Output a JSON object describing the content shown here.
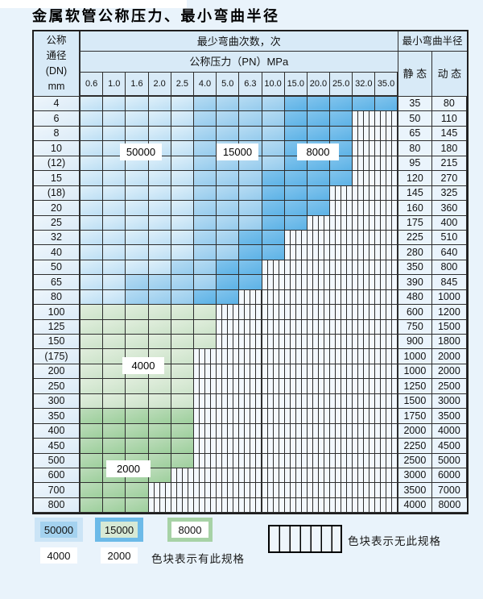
{
  "title": "金属软管公称压力、最小弯曲半径",
  "table": {
    "dn_header_lines": [
      "公称",
      "通径",
      "(DN)",
      "mm"
    ],
    "bend_cycles_header": "最少弯曲次数，次",
    "pressure_header": "公称压力（PN）MPa",
    "radius_header": "最小弯曲半径",
    "static_header": "静 态",
    "dynamic_header": "动 态",
    "pressure_columns": [
      "0.6",
      "1.0",
      "1.6",
      "2.0",
      "2.5",
      "4.0",
      "5.0",
      "6.3",
      "10.0",
      "15.0",
      "20.0",
      "25.0",
      "32.0",
      "35.0"
    ],
    "cell_legend": {
      "L": "50000",
      "M": "15000",
      "D": "8000",
      "g": "4000",
      "G": "2000",
      "x": "no-spec-hatched"
    },
    "rows": [
      {
        "dn": "4",
        "cells": "LLLLLMMMMDDDDD",
        "static": "35",
        "dynamic": "80"
      },
      {
        "dn": "6",
        "cells": "LLLLLMMMMDDDxx",
        "static": "50",
        "dynamic": "110"
      },
      {
        "dn": "8",
        "cells": "LLLLLMMMMDDDxx",
        "static": "65",
        "dynamic": "145"
      },
      {
        "dn": "10",
        "cells": "LLLLLMMMMDDDxx",
        "static": "80",
        "dynamic": "180"
      },
      {
        "dn": "(12)",
        "cells": "LLLLLMMMMDDDxx",
        "static": "95",
        "dynamic": "215"
      },
      {
        "dn": "15",
        "cells": "LLLLLMMMDDDDxx",
        "static": "120",
        "dynamic": "270"
      },
      {
        "dn": "(18)",
        "cells": "LLLLLMMMDDDxxx",
        "static": "145",
        "dynamic": "325"
      },
      {
        "dn": "20",
        "cells": "LLLLLMMMDDDxxx",
        "static": "160",
        "dynamic": "360"
      },
      {
        "dn": "25",
        "cells": "LLLLLMMMDDxxxx",
        "static": "175",
        "dynamic": "400"
      },
      {
        "dn": "32",
        "cells": "LLLLLMMDDxxxxx",
        "static": "225",
        "dynamic": "510"
      },
      {
        "dn": "40",
        "cells": "LLLLLMMDDxxxxx",
        "static": "280",
        "dynamic": "640"
      },
      {
        "dn": "50",
        "cells": "LLLLMMDDxxxxxx",
        "static": "350",
        "dynamic": "800"
      },
      {
        "dn": "65",
        "cells": "LLMMMMDDxxxxxx",
        "static": "390",
        "dynamic": "845"
      },
      {
        "dn": "80",
        "cells": "LLMMMDDxxxxxxx",
        "static": "480",
        "dynamic": "1000"
      },
      {
        "dn": "100",
        "cells": "ggggggxxxxxxxx",
        "static": "600",
        "dynamic": "1200"
      },
      {
        "dn": "125",
        "cells": "ggggggxxxxxxxx",
        "static": "750",
        "dynamic": "1500"
      },
      {
        "dn": "150",
        "cells": "ggggggxxxxxxxx",
        "static": "900",
        "dynamic": "1800"
      },
      {
        "dn": "(175)",
        "cells": "gggggxxxxxxxxx",
        "static": "1000",
        "dynamic": "2000"
      },
      {
        "dn": "200",
        "cells": "gggggxxxxxxxxx",
        "static": "1000",
        "dynamic": "2000"
      },
      {
        "dn": "250",
        "cells": "gggggxxxxxxxxx",
        "static": "1250",
        "dynamic": "2500"
      },
      {
        "dn": "300",
        "cells": "gggggxxxxxxxxx",
        "static": "1500",
        "dynamic": "3000"
      },
      {
        "dn": "350",
        "cells": "GGGGGxxxxxxxxx",
        "static": "1750",
        "dynamic": "3500"
      },
      {
        "dn": "400",
        "cells": "GGGGGxxxxxxxxx",
        "static": "2000",
        "dynamic": "4000"
      },
      {
        "dn": "450",
        "cells": "GGGGGxxxxxxxxx",
        "static": "2250",
        "dynamic": "4500"
      },
      {
        "dn": "500",
        "cells": "GGGGGxxxxxxxxx",
        "static": "2500",
        "dynamic": "5000"
      },
      {
        "dn": "600",
        "cells": "GGGGxxxxxxxxxx",
        "static": "3000",
        "dynamic": "6000"
      },
      {
        "dn": "700",
        "cells": "GGGxxxxxxxxxxx",
        "static": "3500",
        "dynamic": "7000"
      },
      {
        "dn": "800",
        "cells": "GGGxxxxxxxxxxx",
        "static": "4000",
        "dynamic": "8000"
      }
    ]
  },
  "zone_labels": [
    {
      "text": "50000"
    },
    {
      "text": "15000"
    },
    {
      "text": "8000"
    },
    {
      "text": "4000"
    },
    {
      "text": "2000"
    }
  ],
  "legend": {
    "chips": [
      {
        "value": "50000",
        "color": "#cbe4f6"
      },
      {
        "value": "15000",
        "color": "#a4d2ef"
      },
      {
        "value": "8000",
        "color": "#6cbae8"
      },
      {
        "value": "4000",
        "color": "#d7e9d5"
      },
      {
        "value": "2000",
        "color": "#a7d2a6"
      }
    ],
    "available_label": "色块表示有此规格",
    "unavailable_label": "色块表示无此规格"
  },
  "colors": {
    "page_background": "#e9f3fb",
    "grid_line": "#2e2e2e",
    "header_fill": "#d8eaf7",
    "zone_50000": "#cbe4f6",
    "zone_15000": "#a4d2ef",
    "zone_8000": "#6cbae8",
    "zone_4000": "#d7e9d5",
    "zone_2000": "#a7d2a6",
    "no_spec_fill": "#f3f8fd"
  }
}
